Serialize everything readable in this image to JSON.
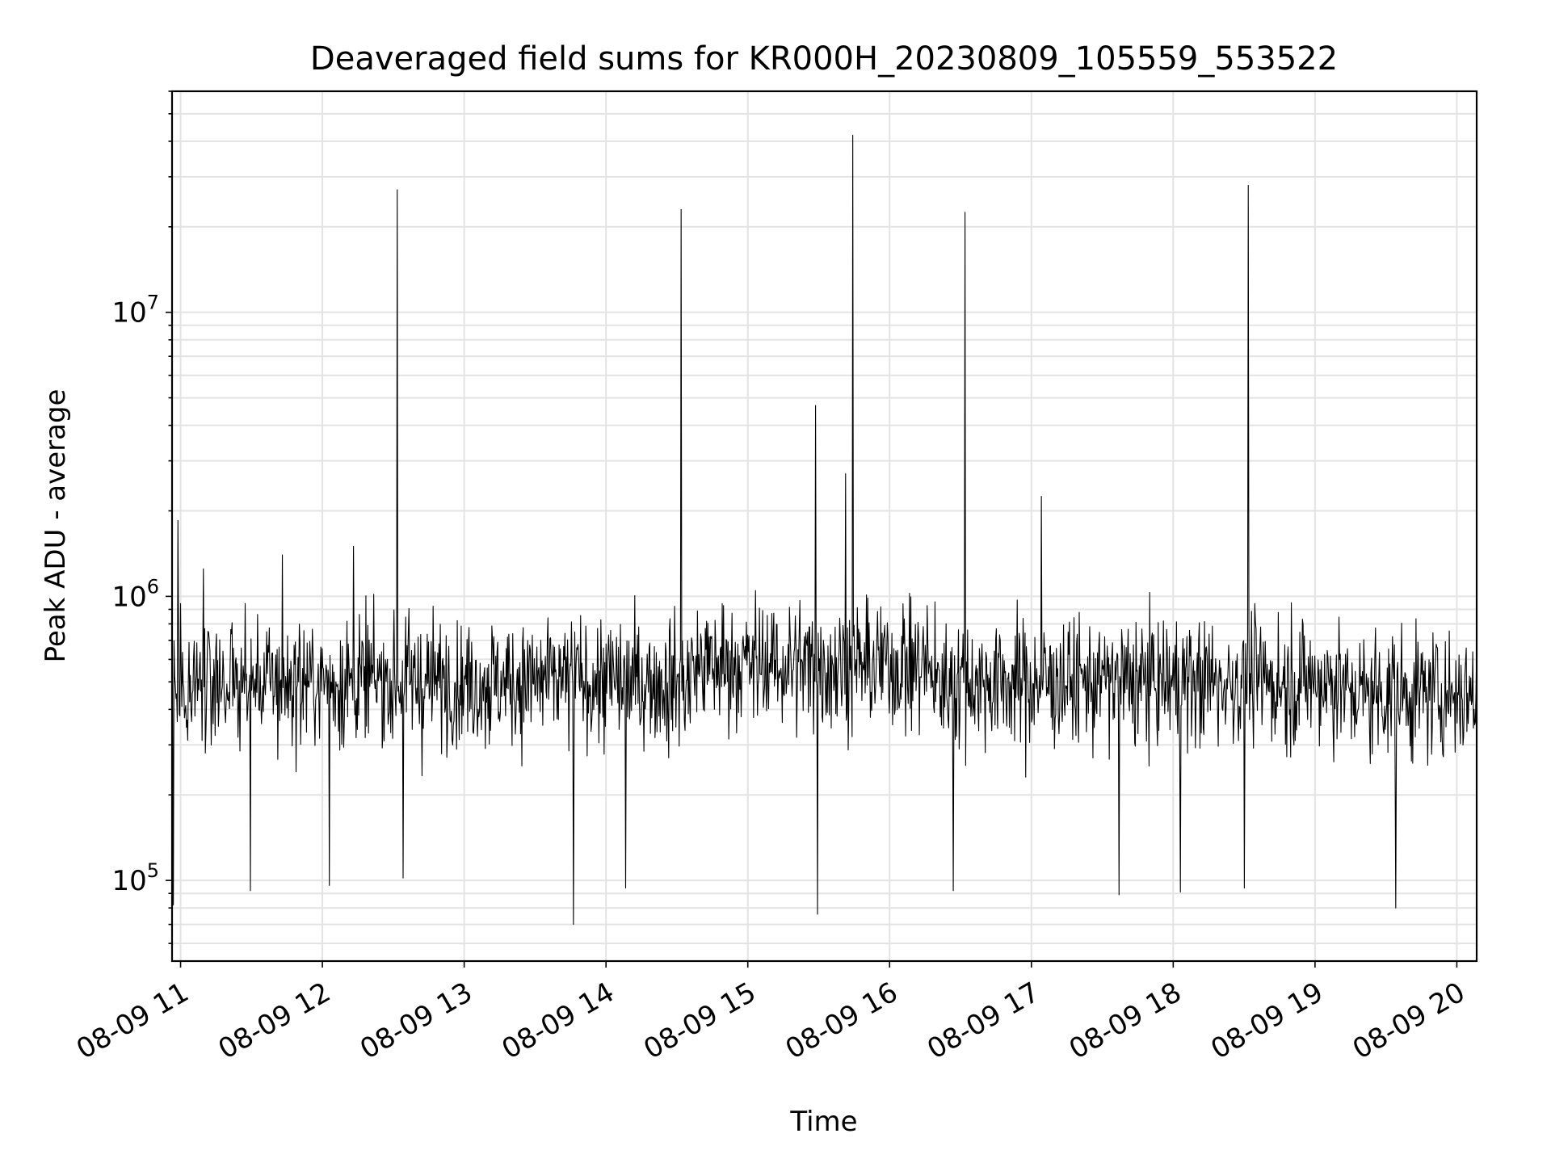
{
  "chart_data": {
    "type": "line",
    "title": "Deaveraged field sums for KR000H_20230809_105559_553522",
    "xlabel": "Time",
    "ylabel": "Peak ADU - average",
    "yscale": "log",
    "ylim": [
      52000,
      60000000
    ],
    "xlim_hours": [
      10.94,
      20.14
    ],
    "grid": true,
    "line_color": "#000000",
    "grid_color": "#e3e3e3",
    "x_tick_hours": [
      11,
      12,
      13,
      14,
      15,
      16,
      17,
      18,
      19,
      20
    ],
    "x_tick_labels": [
      "08-09 11",
      "08-09 12",
      "08-09 13",
      "08-09 14",
      "08-09 15",
      "08-09 16",
      "08-09 17",
      "08-09 18",
      "08-09 19",
      "08-09 20"
    ],
    "y_ticks": [
      {
        "value": 100000,
        "base": "10",
        "exp": "5"
      },
      {
        "value": 1000000,
        "base": "10",
        "exp": "6"
      },
      {
        "value": 10000000,
        "base": "10",
        "exp": "7"
      }
    ],
    "series": [
      {
        "name": "Peak ADU - average",
        "x_start_hours": 10.94,
        "x_end_hours": 20.14,
        "baseline_typical": 500000,
        "spikes": [
          {
            "hour": 10.98,
            "value": 1850000
          },
          {
            "hour": 11.16,
            "value": 1250000
          },
          {
            "hour": 11.72,
            "value": 1400000
          },
          {
            "hour": 12.22,
            "value": 1500000
          },
          {
            "hour": 12.53,
            "value": 27000000
          },
          {
            "hour": 14.53,
            "value": 23000000
          },
          {
            "hour": 15.48,
            "value": 4700000
          },
          {
            "hour": 15.69,
            "value": 2700000
          },
          {
            "hour": 15.74,
            "value": 42000000
          },
          {
            "hour": 16.53,
            "value": 22500000
          },
          {
            "hour": 17.07,
            "value": 2250000
          },
          {
            "hour": 18.53,
            "value": 28000000
          }
        ],
        "dips": [
          {
            "hour": 10.95,
            "value": 82000
          },
          {
            "hour": 11.49,
            "value": 92000
          },
          {
            "hour": 12.05,
            "value": 96000
          },
          {
            "hour": 12.57,
            "value": 102000
          },
          {
            "hour": 13.77,
            "value": 70000
          },
          {
            "hour": 14.14,
            "value": 94000
          },
          {
            "hour": 15.49,
            "value": 76000
          },
          {
            "hour": 16.45,
            "value": 92000
          },
          {
            "hour": 17.62,
            "value": 89000
          },
          {
            "hour": 18.05,
            "value": 91000
          },
          {
            "hour": 18.5,
            "value": 94000
          },
          {
            "hour": 19.57,
            "value": 80000
          }
        ]
      }
    ]
  }
}
